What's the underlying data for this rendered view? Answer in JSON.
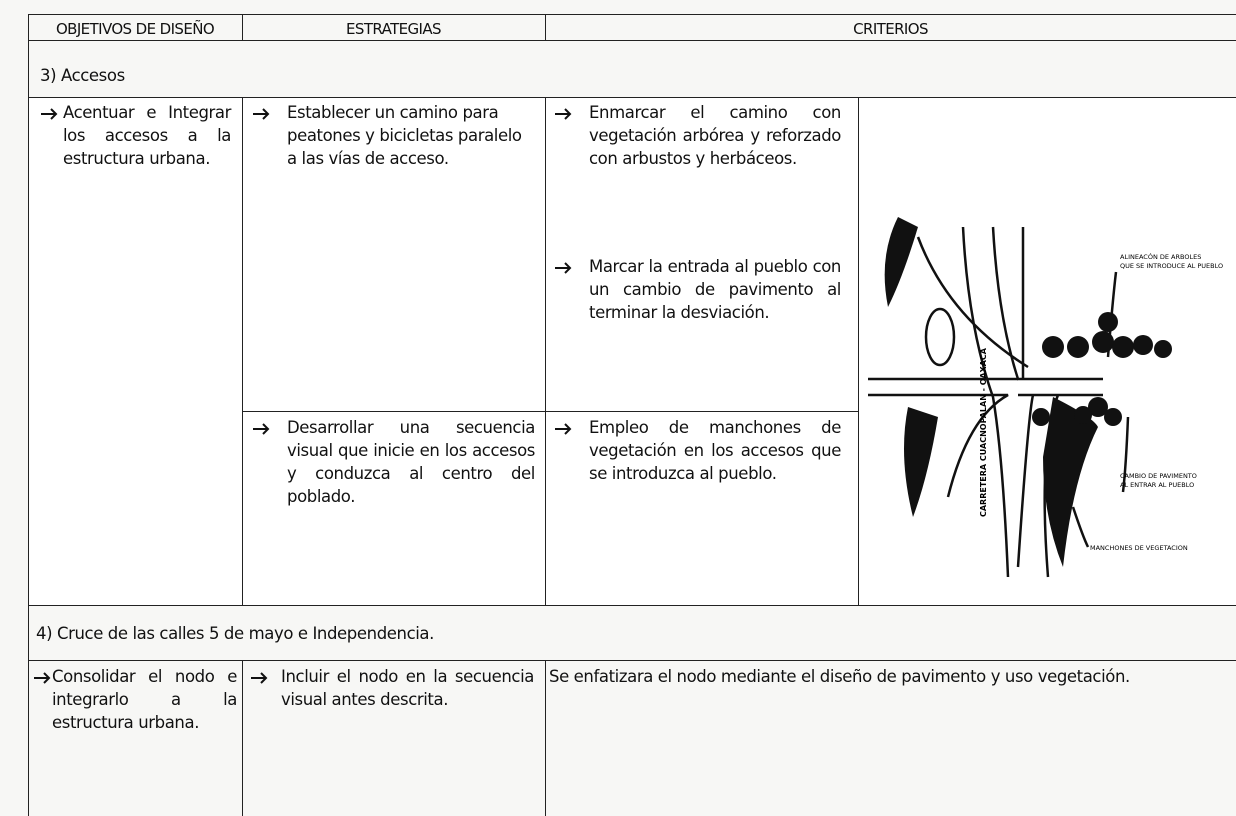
{
  "header": {
    "columns": [
      "OBJETIVOS DE DISEÑO",
      "ESTRATEGIAS",
      "CRITERIOS"
    ]
  },
  "sections": [
    {
      "title": "3) Accesos",
      "objective": "Acentuar e Integrar los accesos a la estructura urbana.",
      "strategies": [
        {
          "text": "Establecer un camino para peatones y bicicletas paralelo a las vías de acceso.",
          "criteria": [
            "Enmarcar el camino con vegetación arbórea y reforzado con arbustos y herbáceos.",
            "Marcar la entrada al pueblo con un cambio de pavimento al terminar la desviación."
          ]
        },
        {
          "text": "Desarrollar una secuencia visual que inicie en los accesos y conduzca al centro del poblado.",
          "criteria": [
            "Empleo de manchones de vegetación en los accesos que se introduzca al pueblo."
          ]
        }
      ],
      "figure": {
        "road_label": "CARRETERA CUACNOPALAN - OAXACA",
        "labels": [
          [
            "ALINEACÓN DE ARBOLES",
            "QUE SE INTRODUCE AL PUEBLO"
          ],
          [
            "CAMBIO DE PAVIMENTO",
            "AL ENTRAR AL PUEBLO"
          ],
          [
            "MANCHONES DE VEGETACION"
          ]
        ]
      }
    },
    {
      "title": "4) Cruce de las calles 5 de mayo e Independencia.",
      "objective": "Consolidar el nodo e integrarlo a la estructura urbana.",
      "strategies": [
        {
          "text": "Incluir el nodo en la secuencia visual antes descrita.",
          "criteria": [
            "Se enfatizara el nodo mediante el diseño de pavimento y uso vegetación."
          ]
        }
      ]
    }
  ]
}
